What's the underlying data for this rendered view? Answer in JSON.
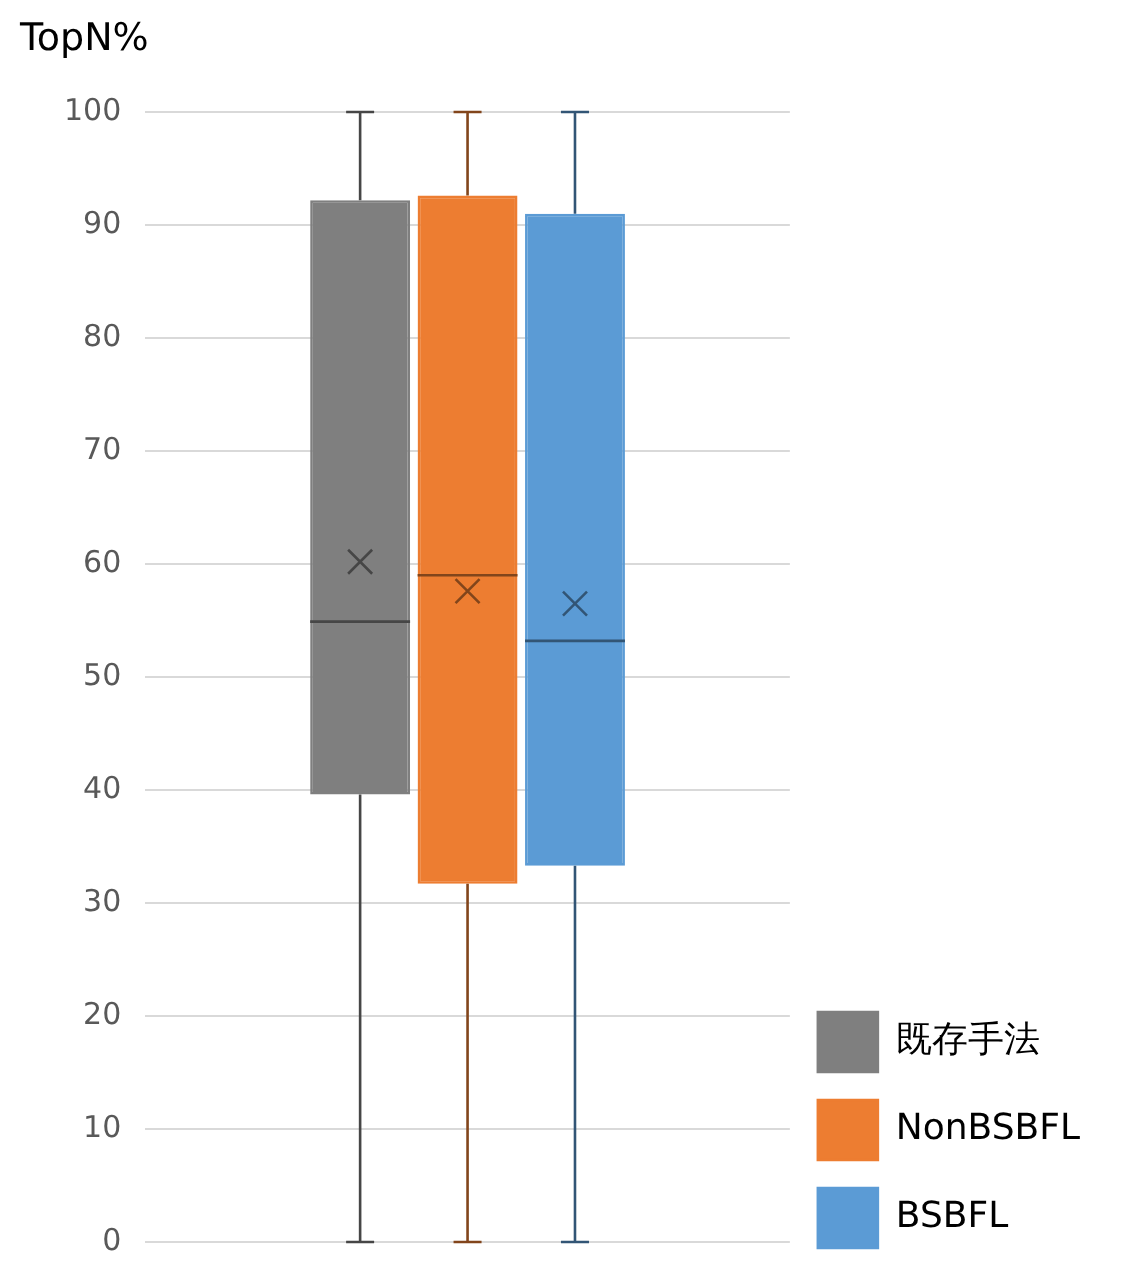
{
  "chart_data": {
    "type": "box",
    "ylabel": "TopN%",
    "categories": [
      null
    ],
    "ylim": [
      0,
      100
    ],
    "yticks": [
      0,
      10,
      20,
      30,
      40,
      50,
      60,
      70,
      80,
      90,
      100
    ],
    "grid": "y",
    "legend": "bottom right",
    "marker": "cross",
    "series": [
      {
        "name": "既存手法",
        "color": "#7f7f7f",
        "boxes": [
          {
            "low": 0,
            "q1": 39.6,
            "median": 54.9,
            "q3": 92.2,
            "high": 100,
            "mean": 60.2
          }
        ]
      },
      {
        "name": "NonBSBFL",
        "color": "#ed7d31",
        "boxes": [
          {
            "low": 0,
            "q1": 31.7,
            "median": 59,
            "q3": 92.6,
            "high": 100,
            "mean": 57.6
          }
        ]
      },
      {
        "name": "BSBFL",
        "color": "#5b9bd5",
        "boxes": [
          {
            "low": 0,
            "q1": 33.3,
            "median": 53.2,
            "q3": 91,
            "high": 100,
            "mean": 56.5
          }
        ]
      }
    ]
  }
}
